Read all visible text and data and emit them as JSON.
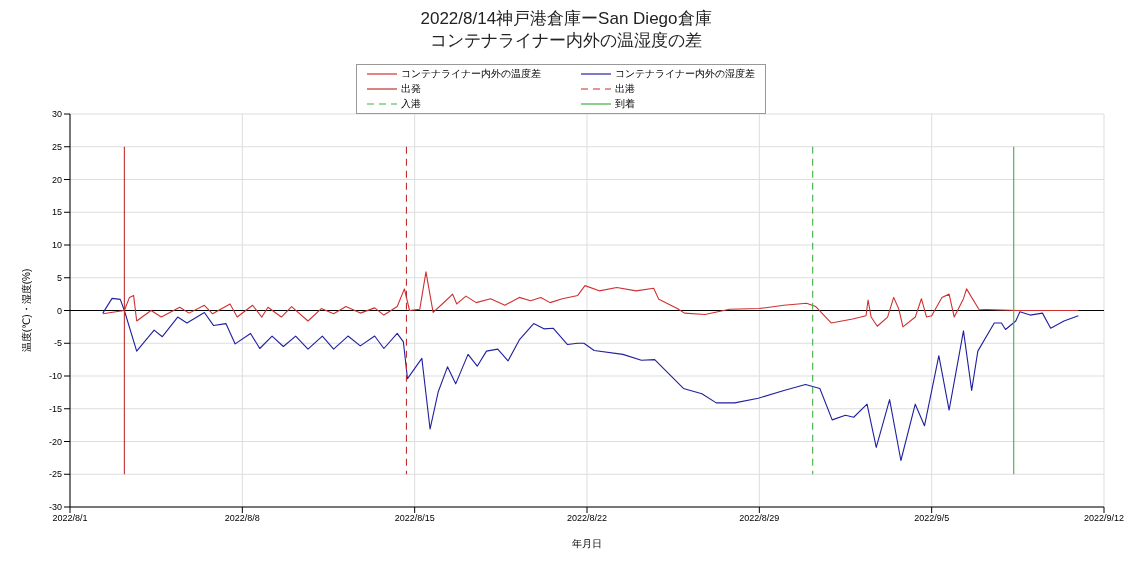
{
  "chart_data": {
    "type": "line",
    "title": "2022/8/14神戸港倉庫ーSan Diego倉庫",
    "subtitle": "コンテナライナー内外の温湿度の差",
    "xlabel": "年月日",
    "ylabel": "温度(℃)・湿度(%)",
    "xlim": [
      "2022-08-01",
      "2022-09-12"
    ],
    "xticks": [
      {
        "value": "2022-08-01",
        "label": "2022/8/1"
      },
      {
        "value": "2022-08-08",
        "label": "2022/8/8"
      },
      {
        "value": "2022-08-15",
        "label": "2022/8/15"
      },
      {
        "value": "2022-08-22",
        "label": "2022/8/22"
      },
      {
        "value": "2022-08-29",
        "label": "2022/8/29"
      },
      {
        "value": "2022-09-05",
        "label": "2022/9/5"
      },
      {
        "value": "2022-09-12",
        "label": "2022/9/12"
      }
    ],
    "ylim": [
      -30,
      30
    ],
    "yticks": [
      -30,
      -25,
      -20,
      -15,
      -10,
      -5,
      0,
      5,
      10,
      15,
      20,
      25,
      30
    ],
    "grid": true,
    "legend": "top",
    "marker": "none",
    "ref_lines": [
      {
        "axis": "y",
        "value": 0,
        "color": "#000000"
      }
    ],
    "series": [
      {
        "name": "コンテナライナー内外の温度差",
        "color": "#d03030",
        "x": [
          "2022-08-02T08:00",
          "2022-08-03T05:00",
          "2022-08-03T10:00",
          "2022-08-03T14:00",
          "2022-08-03T17:00",
          "2022-08-04T07:00",
          "2022-08-04T17:00",
          "2022-08-05T11:00",
          "2022-08-05T20:00",
          "2022-08-06T11:00",
          "2022-08-06T19:00",
          "2022-08-07T12:00",
          "2022-08-07T19:00",
          "2022-08-08T10:00",
          "2022-08-08T19:00",
          "2022-08-09T01:00",
          "2022-08-09T14:00",
          "2022-08-10T00:00",
          "2022-08-10T16:00",
          "2022-08-11T05:00",
          "2022-08-11T17:00",
          "2022-08-12T05:00",
          "2022-08-12T19:00",
          "2022-08-13T09:00",
          "2022-08-13T18:00",
          "2022-08-14T07:00",
          "2022-08-14T14:00",
          "2022-08-14T19:00",
          "2022-08-15T05:00",
          "2022-08-15T11:00",
          "2022-08-15T18:00",
          "2022-08-16T05:00",
          "2022-08-16T13:00",
          "2022-08-16T17:00",
          "2022-08-17T02:00",
          "2022-08-17T12:00",
          "2022-08-18T02:00",
          "2022-08-18T16:00",
          "2022-08-19T06:00",
          "2022-08-19T17:00",
          "2022-08-20T03:00",
          "2022-08-20T12:00",
          "2022-08-21T00:00",
          "2022-08-21T15:00",
          "2022-08-21T22:00",
          "2022-08-22T12:00",
          "2022-08-23T05:00",
          "2022-08-24T00:00",
          "2022-08-24T17:00",
          "2022-08-24T22:00",
          "2022-08-25T16:00",
          "2022-08-25T23:00",
          "2022-08-26T19:00",
          "2022-08-27T19:00",
          "2022-08-29T00:00",
          "2022-08-30T00:00",
          "2022-08-30T22:00",
          "2022-08-31T07:00",
          "2022-08-31T22:00",
          "2022-09-01T19:00",
          "2022-09-02T08:00",
          "2022-09-02T10:00",
          "2022-09-02T13:00",
          "2022-09-02T19:00",
          "2022-09-03T05:00",
          "2022-09-03T11:00",
          "2022-09-03T16:00",
          "2022-09-03T20:00",
          "2022-09-04T08:00",
          "2022-09-04T14:00",
          "2022-09-04T19:00",
          "2022-09-05T00:00",
          "2022-09-05T10:00",
          "2022-09-05T17:00",
          "2022-09-05T22:00",
          "2022-09-06T07:00",
          "2022-09-06T10:00",
          "2022-09-06T22:00",
          "2022-09-08T12:00",
          "2022-09-10T23:00"
        ],
        "values": [
          -0.5,
          0,
          2.0,
          2.3,
          -1.6,
          0,
          -1.0,
          0.5,
          -0.4,
          0.8,
          -0.5,
          1.0,
          -1.0,
          0.8,
          -1.0,
          0.5,
          -1.0,
          0.6,
          -1.6,
          0.3,
          -0.5,
          0.6,
          -0.4,
          0.4,
          -0.7,
          0.6,
          3.3,
          0,
          0.2,
          5.9,
          -0.3,
          1.3,
          2.5,
          1.0,
          2.2,
          1.2,
          1.8,
          0.8,
          2.0,
          1.5,
          2.0,
          1.2,
          1.8,
          2.3,
          3.8,
          3.0,
          3.5,
          3.0,
          3.4,
          1.7,
          0.3,
          -0.4,
          -0.6,
          0.2,
          0.3,
          0.8,
          1.1,
          0.6,
          -1.9,
          -1.3,
          -0.8,
          1.6,
          -1.0,
          -2.4,
          -1.0,
          2.0,
          0.2,
          -2.5,
          -1.0,
          1.8,
          -1.0,
          -0.8,
          2.0,
          2.5,
          -1.0,
          1.8,
          3.3,
          0.2,
          0,
          0
        ]
      },
      {
        "name": "コンテナライナー内外の湿度差",
        "color": "#2020a0",
        "x": [
          "2022-08-02T08:00",
          "2022-08-02T17:00",
          "2022-08-03T01:00",
          "2022-08-03T05:00",
          "2022-08-03T17:00",
          "2022-08-04T10:00",
          "2022-08-04T18:00",
          "2022-08-05T09:00",
          "2022-08-05T18:00",
          "2022-08-06T11:00",
          "2022-08-06T20:00",
          "2022-08-07T08:00",
          "2022-08-07T17:00",
          "2022-08-08T08:00",
          "2022-08-08T17:00",
          "2022-08-09T05:00",
          "2022-08-09T16:00",
          "2022-08-10T04:00",
          "2022-08-10T16:00",
          "2022-08-11T06:00",
          "2022-08-11T17:00",
          "2022-08-12T07:00",
          "2022-08-12T19:00",
          "2022-08-13T09:00",
          "2022-08-13T18:00",
          "2022-08-14T07:00",
          "2022-08-14T13:00",
          "2022-08-14T17:00",
          "2022-08-15T07:00",
          "2022-08-15T15:00",
          "2022-08-15T23:00",
          "2022-08-16T08:00",
          "2022-08-16T16:00",
          "2022-08-17T04:00",
          "2022-08-17T13:00",
          "2022-08-17T22:00",
          "2022-08-18T09:00",
          "2022-08-18T19:00",
          "2022-08-19T06:00",
          "2022-08-19T20:00",
          "2022-08-20T06:00",
          "2022-08-20T15:00",
          "2022-08-21T05:00",
          "2022-08-21T15:00",
          "2022-08-21T21:00",
          "2022-08-22T07:00",
          "2022-08-23T11:00",
          "2022-08-24T05:00",
          "2022-08-24T18:00",
          "2022-08-25T22:00",
          "2022-08-26T16:00",
          "2022-08-27T06:00",
          "2022-08-28T00:00",
          "2022-08-28T23:00",
          "2022-08-30T00:00",
          "2022-08-30T21:00",
          "2022-08-31T11:00",
          "2022-08-31T23:00",
          "2022-09-01T12:00",
          "2022-09-01T20:00",
          "2022-09-02T09:00",
          "2022-09-02T18:00",
          "2022-09-03T07:00",
          "2022-09-03T18:00",
          "2022-09-04T08:00",
          "2022-09-04T17:00",
          "2022-09-05T07:00",
          "2022-09-05T17:00",
          "2022-09-06T07:00",
          "2022-09-06T15:00",
          "2022-09-06T21:00",
          "2022-09-07T13:00",
          "2022-09-07T20:00",
          "2022-09-08T00:00",
          "2022-09-08T10:00",
          "2022-09-08T14:00",
          "2022-09-09T00:00",
          "2022-09-09T12:00",
          "2022-09-09T20:00",
          "2022-09-10T09:00",
          "2022-09-10T23:00"
        ],
        "values": [
          -0.4,
          1.85,
          1.7,
          0,
          -6.2,
          -3.0,
          -4.0,
          -1.0,
          -1.9,
          -0.3,
          -2.3,
          -2.0,
          -5.1,
          -3.5,
          -5.8,
          -3.9,
          -5.5,
          -3.9,
          -5.9,
          -3.9,
          -5.9,
          -3.9,
          -5.4,
          -3.9,
          -5.8,
          -3.5,
          -4.8,
          -10.4,
          -7.3,
          -18.1,
          -12.4,
          -8.6,
          -11.2,
          -6.7,
          -8.5,
          -6.2,
          -5.9,
          -7.7,
          -4.5,
          -2.0,
          -2.8,
          -2.7,
          -5.2,
          -5.0,
          -5.0,
          -6.1,
          -6.7,
          -7.6,
          -7.5,
          -11.9,
          -12.7,
          -14.1,
          -14.1,
          -13.4,
          -12.2,
          -11.3,
          -11.9,
          -16.7,
          -16.0,
          -16.3,
          -14.3,
          -20.9,
          -13.6,
          -22.9,
          -14.3,
          -17.6,
          -6.9,
          -15.2,
          -3.1,
          -12.2,
          -6.2,
          -1.9,
          -1.9,
          -2.9,
          -1.6,
          -0.2,
          -0.7,
          -0.4,
          -2.7,
          -1.6,
          -0.8
        ]
      },
      {
        "name": "出発",
        "color": "#c03030",
        "line_style": "solid",
        "x": [
          "2022-08-03T05:00",
          "2022-08-03T05:00"
        ],
        "values": [
          25,
          -25
        ]
      },
      {
        "name": "出港",
        "color": "#c03030",
        "line_style": "dashed",
        "x": [
          "2022-08-14T16:00",
          "2022-08-14T16:00"
        ],
        "values": [
          25,
          -25
        ]
      },
      {
        "name": "入港",
        "color": "#40b040",
        "line_style": "dashed",
        "x": [
          "2022-08-31T04:00",
          "2022-08-31T04:00"
        ],
        "values": [
          25,
          -25
        ]
      },
      {
        "name": "到着",
        "color": "#40b040",
        "line_style": "solid",
        "x": [
          "2022-09-08T08:00",
          "2022-09-08T08:00"
        ],
        "values": [
          25,
          -25
        ]
      }
    ]
  }
}
